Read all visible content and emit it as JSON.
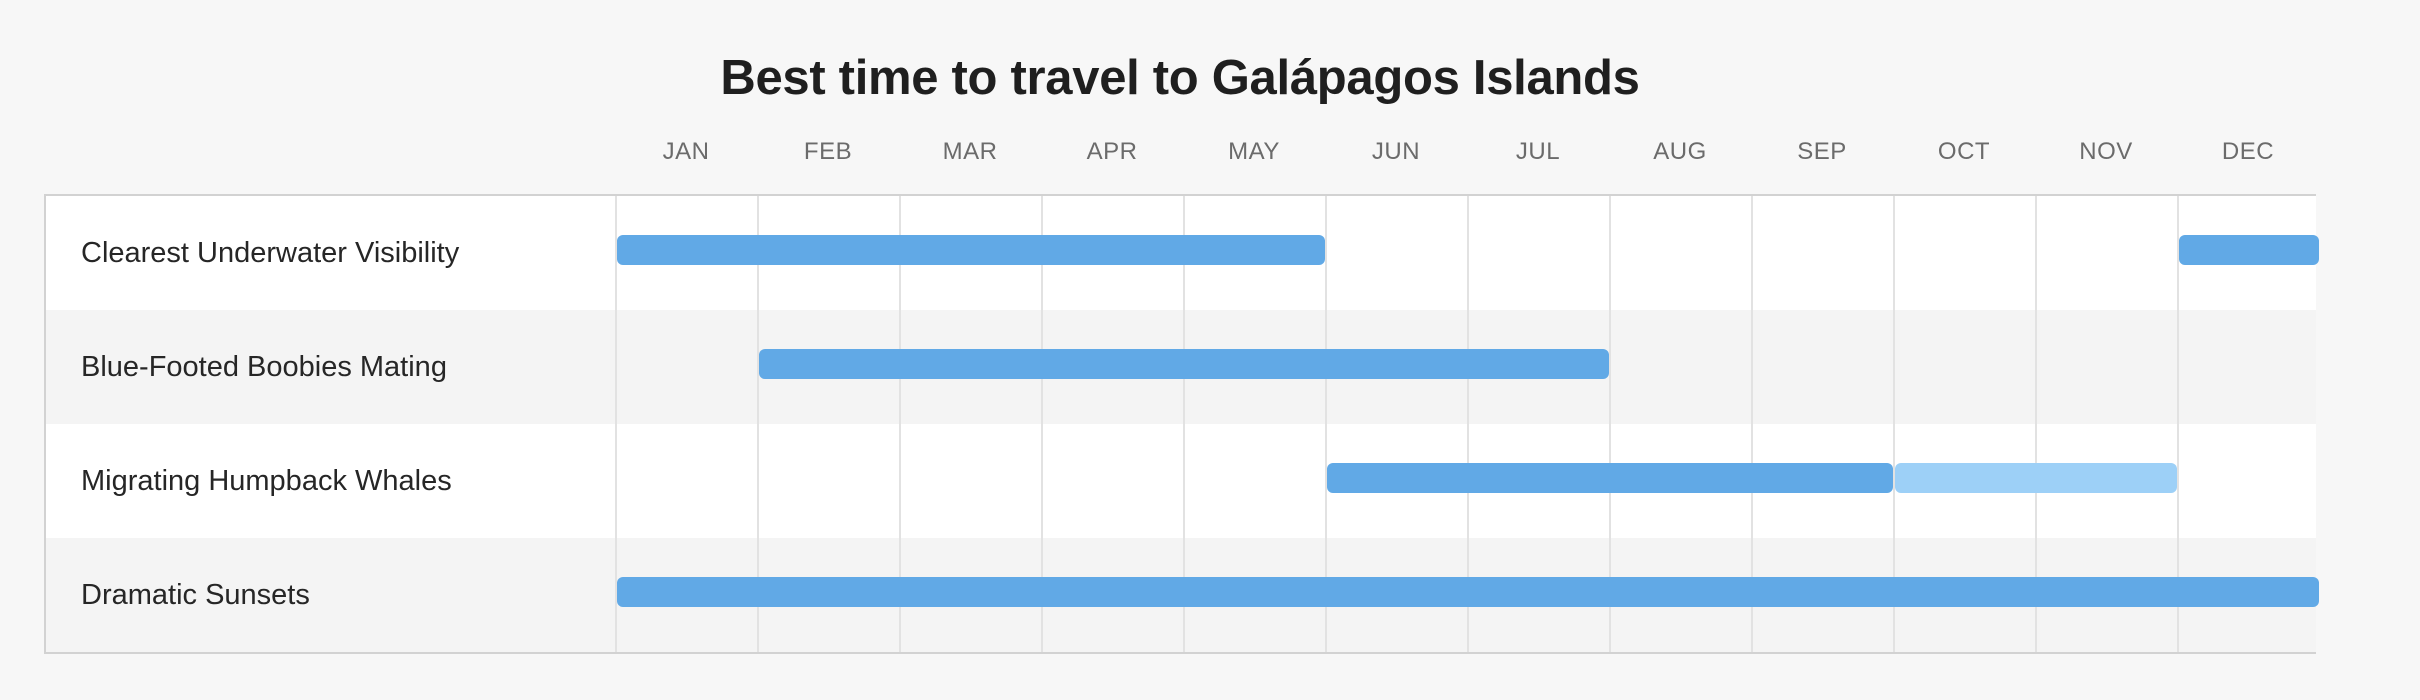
{
  "title": "Best time to travel to Galápagos Islands",
  "months": [
    "JAN",
    "FEB",
    "MAR",
    "APR",
    "MAY",
    "JUN",
    "JUL",
    "AUG",
    "SEP",
    "OCT",
    "NOV",
    "DEC"
  ],
  "colors": {
    "bar_primary": "#61a9e6",
    "bar_secondary": "#9dd0f7",
    "row_alt": "#f4f4f4",
    "grid": "#e2e2e2"
  },
  "chart_data": {
    "type": "gantt",
    "categories": [
      "JAN",
      "FEB",
      "MAR",
      "APR",
      "MAY",
      "JUN",
      "JUL",
      "AUG",
      "SEP",
      "OCT",
      "NOV",
      "DEC"
    ],
    "rows": [
      {
        "label": "Clearest Underwater Visibility",
        "segments": [
          {
            "start_month": 1,
            "end_month": 5,
            "shade": "primary"
          },
          {
            "start_month": 12,
            "end_month": 12,
            "shade": "primary"
          }
        ]
      },
      {
        "label": "Blue-Footed Boobies Mating",
        "segments": [
          {
            "start_month": 2,
            "end_month": 7,
            "shade": "primary"
          }
        ]
      },
      {
        "label": "Migrating Humpback Whales",
        "segments": [
          {
            "start_month": 6,
            "end_month": 9,
            "shade": "primary"
          },
          {
            "start_month": 10,
            "end_month": 11,
            "shade": "secondary"
          }
        ]
      },
      {
        "label": "Dramatic Sunsets",
        "segments": [
          {
            "start_month": 1,
            "end_month": 12,
            "shade": "primary"
          }
        ]
      }
    ]
  }
}
